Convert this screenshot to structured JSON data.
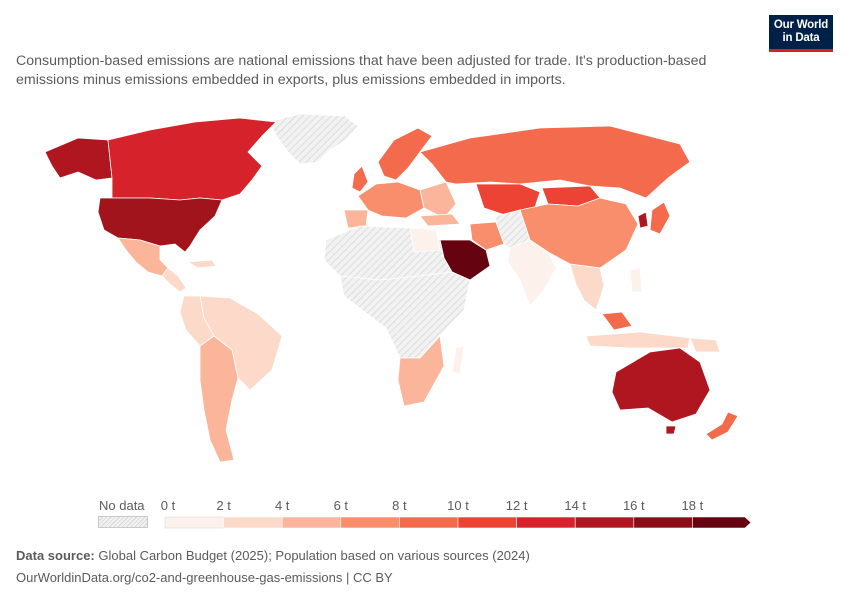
{
  "logo": {
    "line1": "Our World",
    "line2": "in Data"
  },
  "subtitle": "Consumption-based emissions are national emissions that have been adjusted for trade. It's production-based emissions minus emissions embedded in exports, plus emissions embedded in imports.",
  "legend": {
    "no_data_label": "No data",
    "unit": "t",
    "ticks": [
      "0 t",
      "2 t",
      "4 t",
      "6 t",
      "8 t",
      "10 t",
      "12 t",
      "14 t",
      "16 t",
      "18 t"
    ],
    "bin_colors": [
      "#fdf1ec",
      "#fcd9c9",
      "#fbb59a",
      "#f88e6c",
      "#f46a4c",
      "#ec4334",
      "#d6232b",
      "#b0161f",
      "#8a0d18",
      "#650410"
    ]
  },
  "colors": {
    "no_data": "#e6e6e6",
    "ocean": "#ffffff",
    "border": "#ffffff"
  },
  "footer": {
    "source_label": "Data source:",
    "source_text": "Global Carbon Budget (2025); Population based on various sources (2024)",
    "url_line": "OurWorldinData.org/co2-and-greenhouse-gas-emissions | CC BY"
  }
}
